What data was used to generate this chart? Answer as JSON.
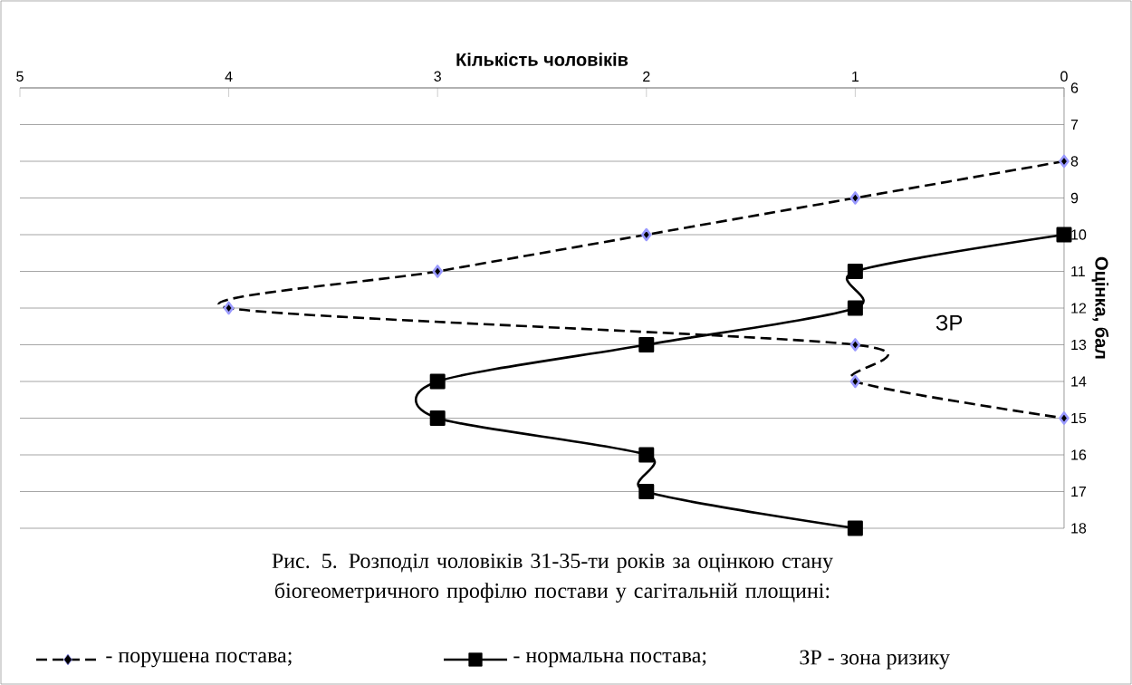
{
  "chart_data": {
    "type": "line",
    "xlabel": "Кількість чоловіків",
    "ylabel": "Оцінка, бал",
    "xlim": [
      5,
      0
    ],
    "xticks": [
      5,
      4,
      3,
      2,
      1,
      0
    ],
    "ylim": [
      18,
      6
    ],
    "yticks": [
      6,
      7,
      8,
      9,
      10,
      11,
      12,
      13,
      14,
      15,
      16,
      17,
      18
    ],
    "grid": "y",
    "legend": "bottom",
    "series": [
      {
        "name": "- порушена постава;",
        "color": "#000000",
        "line_style": "dashed",
        "marker": "diamond",
        "x": [
          0,
          1,
          2,
          3,
          4,
          1,
          1,
          0
        ],
        "values": [
          8,
          9,
          10,
          11,
          12,
          13,
          14,
          15
        ]
      },
      {
        "name": "- нормальна постава;",
        "color": "#000000",
        "line_style": "solid",
        "marker": "square",
        "x": [
          0,
          1,
          1,
          2,
          3,
          3,
          2,
          2,
          1
        ],
        "values": [
          10,
          11,
          12,
          13,
          14,
          15,
          16,
          17,
          18
        ]
      }
    ],
    "annotations": [
      {
        "text": "ЗР",
        "x": 0.55,
        "y": 12.4
      },
      "Рис. 5. Розподіл чоловіків 31-35-ти років за оцінкою стану біогеометричного профілю постави у сагітальній площині:",
      "ЗР - зона ризику"
    ]
  }
}
